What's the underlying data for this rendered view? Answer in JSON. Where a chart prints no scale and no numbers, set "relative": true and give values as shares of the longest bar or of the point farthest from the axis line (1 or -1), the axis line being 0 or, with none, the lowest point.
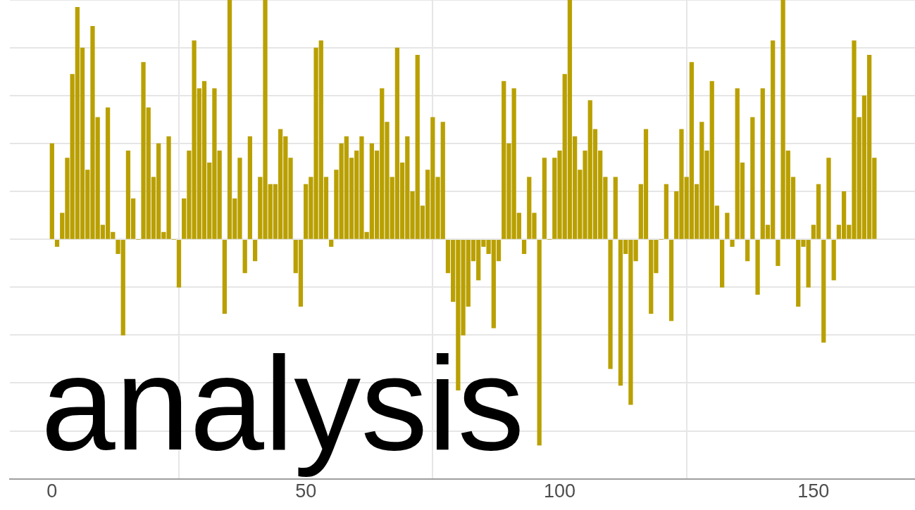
{
  "chart_data": {
    "type": "bar",
    "relative": true,
    "color": "#b9a000",
    "x": [
      0,
      1,
      2,
      3,
      4,
      5,
      6,
      7,
      8,
      9,
      10,
      11,
      12,
      13,
      14,
      15,
      16,
      17,
      18,
      19,
      20,
      21,
      22,
      23,
      24,
      25,
      26,
      27,
      28,
      29,
      30,
      31,
      32,
      33,
      34,
      35,
      36,
      37,
      38,
      39,
      40,
      41,
      42,
      43,
      44,
      45,
      46,
      47,
      48,
      49,
      50,
      51,
      52,
      53,
      54,
      55,
      56,
      57,
      58,
      59,
      60,
      61,
      62,
      63,
      64,
      65,
      66,
      67,
      68,
      69,
      70,
      71,
      72,
      73,
      74,
      75,
      76,
      77,
      78,
      79,
      80,
      81,
      82,
      83,
      84,
      85,
      86,
      87,
      88,
      89,
      90,
      91,
      92,
      93,
      94,
      95,
      96,
      97,
      98,
      99,
      100,
      101,
      102,
      103,
      104,
      105,
      106,
      107,
      108,
      109,
      110,
      111,
      112,
      113,
      114,
      115,
      116,
      117,
      118,
      119,
      120,
      121,
      122,
      123,
      124,
      125,
      126,
      127,
      128,
      129,
      130,
      131,
      132,
      133,
      134,
      135,
      136,
      137,
      138,
      139,
      140,
      141,
      142,
      143,
      144,
      145,
      146,
      147,
      148,
      149,
      150,
      151,
      152,
      153,
      154,
      155,
      156,
      157,
      158,
      159,
      160,
      161,
      162
    ],
    "values": [
      0.4,
      -0.03,
      0.11,
      0.34,
      0.69,
      0.97,
      0.8,
      0.29,
      0.89,
      0.51,
      0.06,
      0.55,
      0.03,
      -0.06,
      -0.4,
      0.37,
      0.17,
      0,
      0.74,
      0.55,
      0.26,
      0.4,
      0.03,
      0.43,
      0,
      -0.2,
      0.17,
      0.37,
      0.83,
      0.63,
      0.66,
      0.32,
      0.63,
      0.37,
      -0.31,
      1,
      0.17,
      0.34,
      -0.14,
      0.43,
      -0.09,
      0.26,
      1,
      0.23,
      0.23,
      0.46,
      0.43,
      0.34,
      -0.14,
      -0.28,
      0.23,
      0.26,
      0.8,
      0.83,
      0.26,
      -0.03,
      0.29,
      0.4,
      0.43,
      0.34,
      0.37,
      0.43,
      0.03,
      0.4,
      0.37,
      0.63,
      0.49,
      0.26,
      0.8,
      0.32,
      0.43,
      0.2,
      0.77,
      0.14,
      0.29,
      0.51,
      0.26,
      0.49,
      -0.14,
      -0.26,
      -0.63,
      -0.4,
      -0.28,
      -0.09,
      -0.17,
      -0.03,
      -0.06,
      -0.37,
      -0.09,
      0.66,
      0.4,
      0.63,
      0.11,
      -0.06,
      0.26,
      0.11,
      -0.86,
      0.34,
      0,
      0.34,
      0.37,
      0.69,
      1,
      0.43,
      0.29,
      0.37,
      0.58,
      0.46,
      0.37,
      0.26,
      -0.54,
      0.26,
      -0.61,
      -0.06,
      -0.69,
      -0.09,
      0.23,
      0.46,
      -0.31,
      -0.14,
      0,
      0.23,
      -0.34,
      0.2,
      0.46,
      0.26,
      0.74,
      0.23,
      0.49,
      0.37,
      0.66,
      0.14,
      -0.2,
      0.11,
      -0.03,
      0.63,
      0.32,
      -0.09,
      0.51,
      -0.23,
      0.63,
      0.06,
      0.83,
      -0.11,
      1,
      0.37,
      0.26,
      -0.28,
      -0.03,
      -0.2,
      0.06,
      0.23,
      -0.43,
      0.34,
      -0.17,
      0.06,
      0.2,
      0.06,
      0.83,
      0.51,
      0.6,
      0.77,
      0.34
    ],
    "xlim": [
      -8.3,
      170
    ],
    "xticks": [
      0,
      50,
      100,
      150
    ],
    "grid": true,
    "tick_labels": "x",
    "annotations": [
      "analysis"
    ]
  }
}
